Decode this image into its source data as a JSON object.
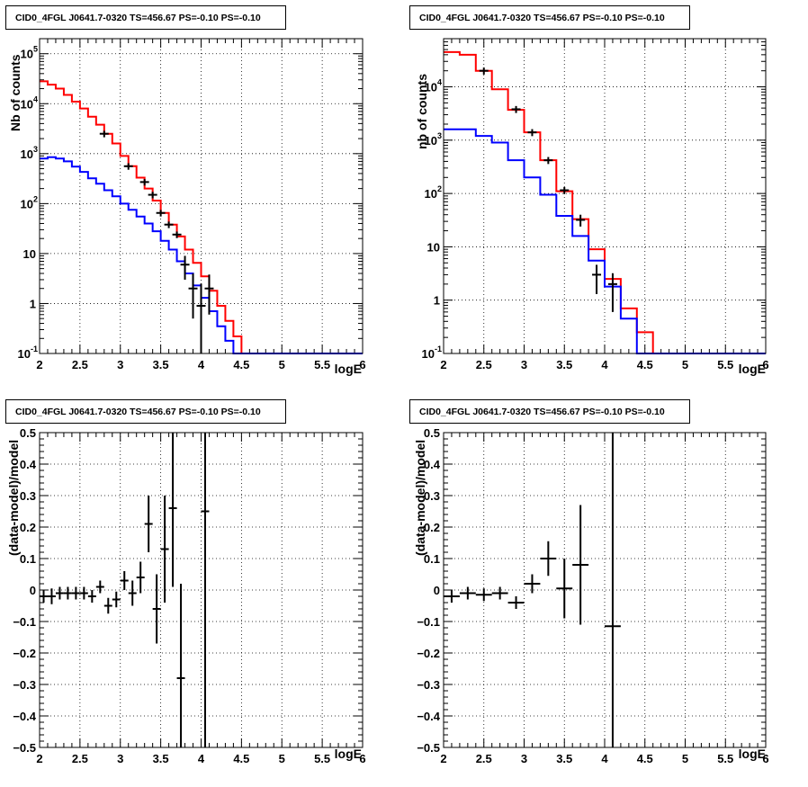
{
  "panels": [
    {
      "id": "tl",
      "title": "CID0_4FGL J0641.7-0320 TS=456.67 PS=-0.10 PS=-0.10",
      "xlabel": "logE",
      "ylabel": "Nb of counts"
    },
    {
      "id": "tr",
      "title": "CID0_4FGL J0641.7-0320 TS=456.67 PS=-0.10 PS=-0.10",
      "xlabel": "logE",
      "ylabel": "nb of counts"
    },
    {
      "id": "bl",
      "title": "CID0_4FGL J0641.7-0320 TS=456.67 PS=-0.10 PS=-0.10",
      "xlabel": "logE",
      "ylabel": "(data-model)/model"
    },
    {
      "id": "br",
      "title": "CID0_4FGL J0641.7-0320 TS=456.67 PS=-0.10 PS=-0.10",
      "xlabel": "logE",
      "ylabel": "(data-model)/model"
    }
  ],
  "colors": {
    "total_model": "#ff0000",
    "source_model": "#0000ff",
    "data": "#000000"
  },
  "chart_data": [
    {
      "type": "line",
      "panel": "tl",
      "scale": "log",
      "xlim": [
        2,
        6
      ],
      "ylim": [
        0.1,
        200000
      ],
      "grid": true,
      "x_ticks": [
        "2",
        "2.5",
        "3",
        "3.5",
        "4",
        "4.5",
        "5",
        "5.5",
        "6"
      ],
      "y_ticks": [
        {
          "v": 0.1,
          "label": "10",
          "sup": "-1"
        },
        {
          "v": 1,
          "label": "1"
        },
        {
          "v": 10,
          "label": "10"
        },
        {
          "v": 100,
          "label": "10",
          "sup": "2"
        },
        {
          "v": 1000,
          "label": "10",
          "sup": "3"
        },
        {
          "v": 10000,
          "label": "10",
          "sup": "4"
        },
        {
          "v": 100000,
          "label": "10",
          "sup": "5"
        }
      ],
      "bin_edges": [
        2.0,
        2.1,
        2.2,
        2.3,
        2.4,
        2.5,
        2.6,
        2.7,
        2.8,
        2.9,
        3.0,
        3.1,
        3.2,
        3.3,
        3.4,
        3.5,
        3.6,
        3.7,
        3.8,
        3.9,
        4.0,
        4.1,
        4.2,
        4.3,
        4.4,
        4.5,
        4.6,
        4.7,
        4.8,
        4.9,
        5.0,
        5.1,
        5.2,
        5.3,
        5.4,
        5.5,
        5.6,
        5.7,
        5.8,
        5.9,
        6.0
      ],
      "series": [
        {
          "role": "total_model",
          "values": [
            28000,
            24000,
            20000,
            15000,
            11000,
            8000,
            5500,
            3800,
            2500,
            1600,
            900,
            560,
            330,
            200,
            115,
            65,
            38,
            22,
            12,
            6.5,
            3.5,
            1.8,
            0.9,
            0.45,
            0.22,
            0.1,
            0.1,
            0.1,
            0.1,
            0.1,
            0.1,
            0.1,
            0.1,
            0.1,
            0.1,
            0.1,
            0.1,
            0.1,
            0.1,
            0.1
          ]
        },
        {
          "role": "source_model",
          "values": [
            800,
            850,
            800,
            700,
            550,
            430,
            320,
            250,
            185,
            140,
            100,
            75,
            55,
            40,
            28,
            18,
            12,
            7,
            4,
            2.3,
            1.3,
            0.7,
            0.35,
            0.18,
            0.1,
            0.1,
            0.1,
            0.1,
            0.1,
            0.1,
            0.1,
            0.1,
            0.1,
            0.1,
            0.1,
            0.1,
            0.1,
            0.1,
            0.1,
            0.1
          ]
        },
        {
          "role": "data",
          "points": [
            {
              "x": 2.8,
              "y": 2500
            },
            {
              "x": 3.1,
              "y": 560
            },
            {
              "x": 3.3,
              "y": 270
            },
            {
              "x": 3.4,
              "y": 150
            },
            {
              "x": 3.5,
              "y": 65
            },
            {
              "x": 3.6,
              "y": 38
            },
            {
              "x": 3.7,
              "y": 24
            },
            {
              "x": 3.8,
              "y": 6,
              "lo": 3,
              "hi": 9
            },
            {
              "x": 3.9,
              "y": 2,
              "lo": 0.5,
              "hi": 4
            },
            {
              "x": 4.0,
              "y": 0.9,
              "lo": 0.1,
              "hi": 2.5
            },
            {
              "x": 4.1,
              "y": 2,
              "lo": 0.6,
              "hi": 3.8
            }
          ]
        }
      ]
    },
    {
      "type": "line",
      "panel": "tr",
      "scale": "log",
      "xlim": [
        2,
        6
      ],
      "ylim": [
        0.1,
        80000
      ],
      "grid": true,
      "x_ticks": [
        "2",
        "2.5",
        "3",
        "3.5",
        "4",
        "4.5",
        "5",
        "5.5",
        "6"
      ],
      "y_ticks": [
        {
          "v": 0.1,
          "label": "10",
          "sup": "-1"
        },
        {
          "v": 1,
          "label": "1"
        },
        {
          "v": 10,
          "label": "10"
        },
        {
          "v": 100,
          "label": "10",
          "sup": "2"
        },
        {
          "v": 1000,
          "label": "10",
          "sup": "3"
        },
        {
          "v": 10000,
          "label": "10",
          "sup": "4"
        }
      ],
      "bin_edges": [
        2.0,
        2.2,
        2.4,
        2.6,
        2.8,
        3.0,
        3.2,
        3.4,
        3.6,
        3.8,
        4.0,
        4.2,
        4.4,
        4.6,
        4.8,
        5.0,
        5.2,
        5.4,
        5.6,
        5.8,
        6.0
      ],
      "series": [
        {
          "role": "total_model",
          "values": [
            45000,
            40000,
            20000,
            9000,
            3700,
            1400,
            420,
            110,
            33,
            9,
            2.5,
            0.7,
            0.25,
            0.1,
            0.1,
            0.1,
            0.1,
            0.1,
            0.1,
            0.1
          ]
        },
        {
          "role": "source_model",
          "values": [
            1600,
            1600,
            1200,
            900,
            420,
            200,
            95,
            38,
            16,
            5.5,
            1.8,
            0.45,
            0.1,
            0.1,
            0.1,
            0.1,
            0.1,
            0.1,
            0.1,
            0.1
          ]
        },
        {
          "role": "data",
          "points": [
            {
              "x": 2.5,
              "y": 20000
            },
            {
              "x": 2.9,
              "y": 3800
            },
            {
              "x": 3.1,
              "y": 1400
            },
            {
              "x": 3.3,
              "y": 420
            },
            {
              "x": 3.5,
              "y": 115
            },
            {
              "x": 3.7,
              "y": 32,
              "lo": 24,
              "hi": 40
            },
            {
              "x": 3.9,
              "y": 3,
              "lo": 1.3,
              "hi": 4.6
            },
            {
              "x": 4.1,
              "y": 2,
              "lo": 0.6,
              "hi": 3.2
            }
          ]
        }
      ]
    },
    {
      "type": "scatter",
      "panel": "bl",
      "scale": "linear",
      "xlim": [
        2,
        6
      ],
      "ylim": [
        -0.5,
        0.5
      ],
      "grid": true,
      "x_ticks": [
        "2",
        "2.5",
        "3",
        "3.5",
        "4",
        "4.5",
        "5",
        "5.5",
        "6"
      ],
      "y_ticks": [
        {
          "v": -0.5,
          "label": "−0.5"
        },
        {
          "v": -0.4,
          "label": "−0.4"
        },
        {
          "v": -0.3,
          "label": "−0.3"
        },
        {
          "v": -0.2,
          "label": "−0.2"
        },
        {
          "v": -0.1,
          "label": "−0.1"
        },
        {
          "v": 0,
          "label": "0"
        },
        {
          "v": 0.1,
          "label": "0.1"
        },
        {
          "v": 0.2,
          "label": "0.2"
        },
        {
          "v": 0.3,
          "label": "0.3"
        },
        {
          "v": 0.4,
          "label": "0.4"
        },
        {
          "v": 0.5,
          "label": "0.5"
        }
      ],
      "series": [
        {
          "role": "data",
          "points": [
            {
              "x": 2.05,
              "xerr": 0.05,
              "y": -0.02,
              "yerr": 0.02
            },
            {
              "x": 2.15,
              "xerr": 0.05,
              "y": -0.02,
              "yerr": 0.025
            },
            {
              "x": 2.25,
              "xerr": 0.05,
              "y": -0.01,
              "yerr": 0.02
            },
            {
              "x": 2.35,
              "xerr": 0.05,
              "y": -0.01,
              "yerr": 0.02
            },
            {
              "x": 2.45,
              "xerr": 0.05,
              "y": -0.01,
              "yerr": 0.02
            },
            {
              "x": 2.55,
              "xerr": 0.05,
              "y": -0.01,
              "yerr": 0.02
            },
            {
              "x": 2.65,
              "xerr": 0.05,
              "y": -0.02,
              "yerr": 0.02
            },
            {
              "x": 2.75,
              "xerr": 0.05,
              "y": 0.01,
              "yerr": 0.02
            },
            {
              "x": 2.85,
              "xerr": 0.05,
              "y": -0.05,
              "yerr": 0.025
            },
            {
              "x": 2.95,
              "xerr": 0.05,
              "y": -0.03,
              "yerr": 0.025
            },
            {
              "x": 3.05,
              "xerr": 0.05,
              "y": 0.03,
              "yerr": 0.03
            },
            {
              "x": 3.15,
              "xerr": 0.05,
              "y": -0.01,
              "yerr": 0.04
            },
            {
              "x": 3.25,
              "xerr": 0.05,
              "y": 0.04,
              "yerr": 0.05
            },
            {
              "x": 3.35,
              "xerr": 0.05,
              "y": 0.21,
              "yerr": 0.09
            },
            {
              "x": 3.45,
              "xerr": 0.05,
              "y": -0.06,
              "yerr": 0.11
            },
            {
              "x": 3.55,
              "xerr": 0.05,
              "y": 0.13,
              "yerr": 0.17
            },
            {
              "x": 3.65,
              "xerr": 0.05,
              "y": 0.26,
              "yerr": 0.25
            },
            {
              "x": 3.75,
              "xerr": 0.05,
              "y": -0.28,
              "yerr": 0.3
            },
            {
              "x": 4.05,
              "xerr": 0.05,
              "y": 0.25,
              "yerr": 0.75
            }
          ]
        }
      ]
    },
    {
      "type": "scatter",
      "panel": "br",
      "scale": "linear",
      "xlim": [
        2,
        6
      ],
      "ylim": [
        -0.5,
        0.5
      ],
      "grid": true,
      "x_ticks": [
        "2",
        "2.5",
        "3",
        "3.5",
        "4",
        "4.5",
        "5",
        "5.5",
        "6"
      ],
      "y_ticks": [
        {
          "v": -0.5,
          "label": "−0.5"
        },
        {
          "v": -0.4,
          "label": "−0.4"
        },
        {
          "v": -0.3,
          "label": "−0.3"
        },
        {
          "v": -0.2,
          "label": "−0.2"
        },
        {
          "v": -0.1,
          "label": "−0.1"
        },
        {
          "v": 0,
          "label": "0"
        },
        {
          "v": 0.1,
          "label": "0.1"
        },
        {
          "v": 0.2,
          "label": "0.2"
        },
        {
          "v": 0.3,
          "label": "0.3"
        },
        {
          "v": 0.4,
          "label": "0.4"
        },
        {
          "v": 0.5,
          "label": "0.5"
        }
      ],
      "series": [
        {
          "role": "data",
          "points": [
            {
              "x": 2.1,
              "xerr": 0.1,
              "y": -0.02,
              "yerr": 0.02
            },
            {
              "x": 2.3,
              "xerr": 0.1,
              "y": -0.01,
              "yerr": 0.02
            },
            {
              "x": 2.5,
              "xerr": 0.1,
              "y": -0.015,
              "yerr": 0.02
            },
            {
              "x": 2.7,
              "xerr": 0.1,
              "y": -0.01,
              "yerr": 0.02
            },
            {
              "x": 2.9,
              "xerr": 0.1,
              "y": -0.04,
              "yerr": 0.02
            },
            {
              "x": 3.1,
              "xerr": 0.1,
              "y": 0.02,
              "yerr": 0.03
            },
            {
              "x": 3.3,
              "xerr": 0.1,
              "y": 0.1,
              "yerr": 0.055
            },
            {
              "x": 3.5,
              "xerr": 0.1,
              "y": 0.005,
              "yerr": 0.095
            },
            {
              "x": 3.7,
              "xerr": 0.1,
              "y": 0.08,
              "yerr": 0.19
            },
            {
              "x": 4.1,
              "xerr": 0.1,
              "y": -0.115,
              "yerr": 0.7
            }
          ]
        }
      ]
    }
  ]
}
